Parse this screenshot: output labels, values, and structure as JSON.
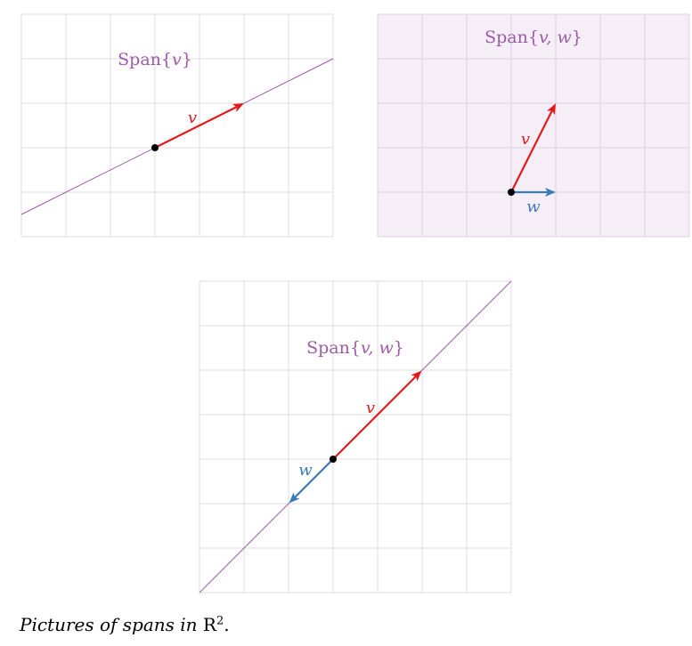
{
  "colors": {
    "span": "#9c5ba6",
    "v": "#e31a1c",
    "w": "#3a7ab8",
    "grid": "#dcdcdc",
    "plane_fill": "#f5eef6"
  },
  "panels": [
    {
      "span_label": {
        "prefix": "Span{",
        "vars": "v",
        "suffix": "}"
      },
      "v_label": "v"
    },
    {
      "span_label": {
        "prefix": "Span{",
        "vars": "v, w",
        "suffix": "}"
      },
      "v_label": "v",
      "w_label": "w"
    },
    {
      "span_label": {
        "prefix": "Span{",
        "vars": "v, w",
        "suffix": "}"
      },
      "v_label": "v",
      "w_label": "w"
    }
  ],
  "caption": {
    "text": "Pictures of spans in ",
    "field": "R",
    "exponent": "2",
    "end": "."
  }
}
